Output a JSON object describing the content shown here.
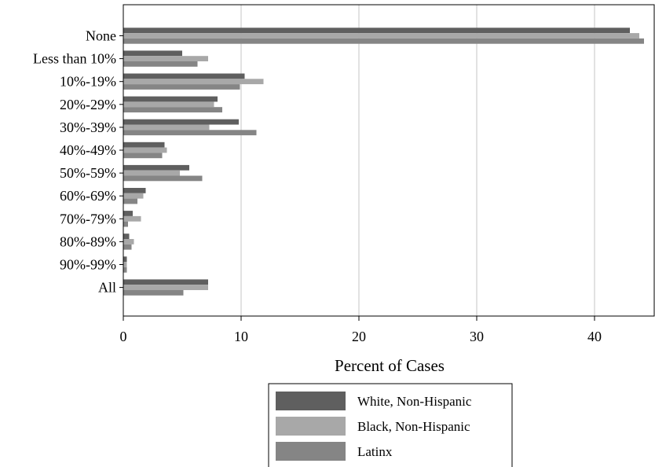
{
  "chart_data": {
    "type": "bar",
    "orientation": "horizontal",
    "title": "",
    "xlabel": "Percent of Cases",
    "ylabel": "",
    "xlim": [
      0,
      45
    ],
    "x_ticks": [
      "0",
      "10",
      "20",
      "30",
      "40"
    ],
    "grid": true,
    "legend_position": "bottom",
    "categories": [
      "None",
      "Less than 10%",
      "10%-19%",
      "20%-29%",
      "30%-39%",
      "40%-49%",
      "50%-59%",
      "60%-69%",
      "70%-79%",
      "80%-89%",
      "90%-99%",
      "All"
    ],
    "series": [
      {
        "name": "White, Non-Hispanic",
        "color": "#5f5f5f",
        "values": [
          43.0,
          5.0,
          10.3,
          8.0,
          9.8,
          3.5,
          5.6,
          1.9,
          0.8,
          0.5,
          0.3,
          7.2
        ]
      },
      {
        "name": "Black, Non-Hispanic",
        "color": "#a8a8a8",
        "values": [
          43.8,
          7.2,
          11.9,
          7.7,
          7.3,
          3.7,
          4.8,
          1.7,
          1.5,
          0.9,
          0.3,
          7.2
        ]
      },
      {
        "name": "Latinx",
        "color": "#858585",
        "values": [
          44.2,
          6.3,
          9.9,
          8.4,
          11.3,
          3.3,
          6.7,
          1.2,
          0.4,
          0.7,
          0.3,
          5.1
        ]
      }
    ]
  }
}
